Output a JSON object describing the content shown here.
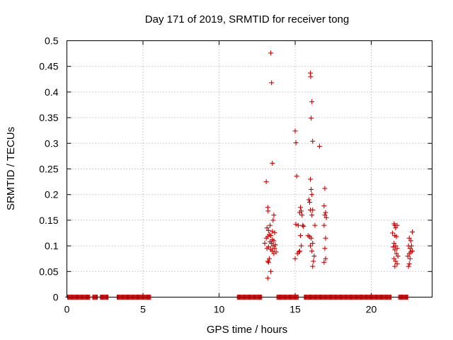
{
  "chart_data": {
    "type": "scatter",
    "title": "Day 171 of 2019, SRMTID for receiver tong",
    "xlabel": "GPS time / hours",
    "ylabel": "SRMTID / TECUs",
    "xlim": [
      0,
      24
    ],
    "ylim": [
      0,
      0.5
    ],
    "x_ticks": [
      0,
      5,
      10,
      15,
      20
    ],
    "x_tick_labels": [
      "0",
      "5",
      "10",
      "15",
      "20"
    ],
    "y_ticks": [
      0,
      0.05,
      0.1,
      0.15,
      0.2,
      0.25,
      0.3,
      0.35,
      0.4,
      0.45,
      0.5
    ],
    "y_tick_labels": [
      "0",
      "0.05",
      "0.1",
      "0.15",
      "0.2",
      "0.25",
      "0.3",
      "0.35",
      "0.4",
      "0.45",
      "0.5"
    ],
    "grid": true,
    "marker": "+",
    "color": "#cc0000",
    "series": [
      {
        "name": "SRMTID",
        "zero_ranges": [
          [
            0.05,
            1.5
          ],
          [
            1.7,
            2.0
          ],
          [
            2.2,
            2.7
          ],
          [
            3.3,
            5.5
          ],
          [
            11.2,
            12.8
          ],
          [
            13.8,
            15.2
          ],
          [
            15.6,
            17.0
          ],
          [
            17.0,
            21.3
          ],
          [
            21.8,
            22.4
          ]
        ],
        "points": [
          [
            13.4,
            0.476
          ],
          [
            13.45,
            0.418
          ],
          [
            13.5,
            0.261
          ],
          [
            13.1,
            0.225
          ],
          [
            13.2,
            0.175
          ],
          [
            13.22,
            0.168
          ],
          [
            13.6,
            0.16
          ],
          [
            13.55,
            0.15
          ],
          [
            13.35,
            0.14
          ],
          [
            13.15,
            0.135
          ],
          [
            13.25,
            0.13
          ],
          [
            13.5,
            0.128
          ],
          [
            13.65,
            0.126
          ],
          [
            13.3,
            0.122
          ],
          [
            13.4,
            0.12
          ],
          [
            13.2,
            0.118
          ],
          [
            13.1,
            0.115
          ],
          [
            13.5,
            0.112
          ],
          [
            13.6,
            0.11
          ],
          [
            13.35,
            0.108
          ],
          [
            13.45,
            0.105
          ],
          [
            13.0,
            0.105
          ],
          [
            13.7,
            0.102
          ],
          [
            13.55,
            0.1
          ],
          [
            13.25,
            0.098
          ],
          [
            13.65,
            0.095
          ],
          [
            13.15,
            0.095
          ],
          [
            13.4,
            0.093
          ],
          [
            13.5,
            0.09
          ],
          [
            13.75,
            0.088
          ],
          [
            13.6,
            0.085
          ],
          [
            13.3,
            0.075
          ],
          [
            13.2,
            0.07
          ],
          [
            13.25,
            0.068
          ],
          [
            13.4,
            0.05
          ],
          [
            13.2,
            0.037
          ],
          [
            15.0,
            0.324
          ],
          [
            15.05,
            0.301
          ],
          [
            15.1,
            0.236
          ],
          [
            15.05,
            0.142
          ],
          [
            15.2,
            0.14
          ],
          [
            15.15,
            0.085
          ],
          [
            15.0,
            0.075
          ],
          [
            15.35,
            0.175
          ],
          [
            15.4,
            0.168
          ],
          [
            15.3,
            0.165
          ],
          [
            15.45,
            0.16
          ],
          [
            15.5,
            0.14
          ],
          [
            15.55,
            0.138
          ],
          [
            15.35,
            0.12
          ],
          [
            15.4,
            0.1
          ],
          [
            15.3,
            0.09
          ],
          [
            15.25,
            0.088
          ],
          [
            16.0,
            0.437
          ],
          [
            16.02,
            0.43
          ],
          [
            16.1,
            0.381
          ],
          [
            16.05,
            0.349
          ],
          [
            16.15,
            0.304
          ],
          [
            16.6,
            0.294
          ],
          [
            16.0,
            0.23
          ],
          [
            16.05,
            0.21
          ],
          [
            16.1,
            0.2
          ],
          [
            15.9,
            0.19
          ],
          [
            15.95,
            0.185
          ],
          [
            16.0,
            0.17
          ],
          [
            16.15,
            0.17
          ],
          [
            16.1,
            0.16
          ],
          [
            16.3,
            0.14
          ],
          [
            15.85,
            0.12
          ],
          [
            15.95,
            0.118
          ],
          [
            16.05,
            0.115
          ],
          [
            16.15,
            0.105
          ],
          [
            16.0,
            0.1
          ],
          [
            16.1,
            0.09
          ],
          [
            16.25,
            0.08
          ],
          [
            16.2,
            0.07
          ],
          [
            16.15,
            0.06
          ],
          [
            16.95,
            0.212
          ],
          [
            16.9,
            0.178
          ],
          [
            17.0,
            0.165
          ],
          [
            16.95,
            0.16
          ],
          [
            17.05,
            0.155
          ],
          [
            16.9,
            0.14
          ],
          [
            17.0,
            0.115
          ],
          [
            16.95,
            0.095
          ],
          [
            17.0,
            0.075
          ],
          [
            16.9,
            0.068
          ],
          [
            21.5,
            0.143
          ],
          [
            21.55,
            0.14
          ],
          [
            21.6,
            0.135
          ],
          [
            21.7,
            0.14
          ],
          [
            21.4,
            0.125
          ],
          [
            21.55,
            0.12
          ],
          [
            21.65,
            0.118
          ],
          [
            21.5,
            0.105
          ],
          [
            21.6,
            0.1
          ],
          [
            21.45,
            0.098
          ],
          [
            21.7,
            0.095
          ],
          [
            21.55,
            0.092
          ],
          [
            21.65,
            0.085
          ],
          [
            21.75,
            0.08
          ],
          [
            21.5,
            0.075
          ],
          [
            21.6,
            0.07
          ],
          [
            21.7,
            0.065
          ],
          [
            21.55,
            0.06
          ],
          [
            22.7,
            0.127
          ],
          [
            22.5,
            0.115
          ],
          [
            22.6,
            0.11
          ],
          [
            22.65,
            0.1
          ],
          [
            22.45,
            0.1
          ],
          [
            22.55,
            0.095
          ],
          [
            22.7,
            0.09
          ],
          [
            22.6,
            0.088
          ],
          [
            22.5,
            0.085
          ],
          [
            22.4,
            0.08
          ],
          [
            22.55,
            0.075
          ],
          [
            22.5,
            0.065
          ],
          [
            22.45,
            0.06
          ]
        ]
      }
    ]
  }
}
